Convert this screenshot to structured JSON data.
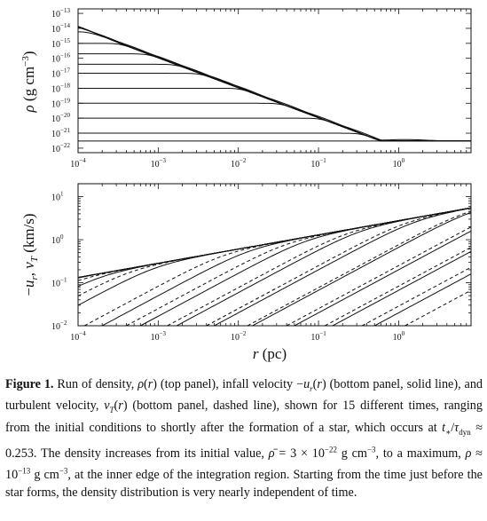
{
  "chart_data": [
    {
      "type": "line",
      "panel": "top",
      "ylabel": "ρ (g cm⁻³)",
      "xlabel": "",
      "xscale": "log",
      "yscale": "log",
      "xlim": [
        0.0001,
        8
      ],
      "ylim": [
        5e-23,
        2e-13
      ],
      "x_ticks": [
        {
          "label": "10",
          "exp": "-4",
          "value": 0.0001
        },
        {
          "label": "10",
          "exp": "-3",
          "value": 0.001
        },
        {
          "label": "10",
          "exp": "-2",
          "value": 0.01
        },
        {
          "label": "10",
          "exp": "-1",
          "value": 0.1
        },
        {
          "label": "10",
          "exp": "0",
          "value": 1
        }
      ],
      "y_ticks": [
        {
          "label": "10",
          "exp": "-13",
          "value": 1e-13
        },
        {
          "label": "10",
          "exp": "-14",
          "value": 1e-14
        },
        {
          "label": "10",
          "exp": "-15",
          "value": 1e-15
        },
        {
          "label": "10",
          "exp": "-16",
          "value": 1e-16
        },
        {
          "label": "10",
          "exp": "-17",
          "value": 1e-17
        },
        {
          "label": "10",
          "exp": "-18",
          "value": 1e-18
        },
        {
          "label": "10",
          "exp": "-19",
          "value": 1e-19
        },
        {
          "label": "10",
          "exp": "-20",
          "value": 1e-20
        },
        {
          "label": "10",
          "exp": "-21",
          "value": 1e-21
        },
        {
          "label": "10",
          "exp": "-22",
          "value": 1e-22
        }
      ],
      "series_style": "solid",
      "envelope_slope": -2,
      "final_density_at_outer_edge": 3e-22,
      "series": [
        {
          "values": [
            3e-22,
            3e-22
          ]
        },
        {
          "core": 1e-21,
          "r_core": 1.2
        },
        {
          "core": 1e-20,
          "r_core": 0.35
        },
        {
          "core": 1e-19,
          "r_core": 0.12
        },
        {
          "core": 1e-18,
          "r_core": 0.04
        },
        {
          "core": 1e-17,
          "r_core": 0.013
        },
        {
          "core": 4e-17,
          "r_core": 0.0065
        },
        {
          "core": 2e-16,
          "r_core": 0.003
        },
        {
          "core": 1e-15,
          "r_core": 0.0013
        },
        {
          "core": 6e-15,
          "r_core": 0.0005
        },
        {
          "core": 3e-14,
          "r_core": 0.00022
        },
        {
          "core": 1e-13,
          "r_core": 0.00012
        },
        {
          "core": 2e-13,
          "r_core": 0.0001
        },
        {
          "core": 2.5e-13,
          "r_core": 0.0001
        },
        {
          "core": 3e-13,
          "r_core": 0.0001
        }
      ]
    },
    {
      "type": "line",
      "panel": "bottom",
      "ylabel": "−u_r, v_T (km/s)",
      "xlabel": "r (pc)",
      "xscale": "log",
      "yscale": "log",
      "xlim": [
        0.0001,
        8
      ],
      "ylim": [
        0.01,
        20
      ],
      "x_ticks": [
        {
          "label": "10",
          "exp": "-4",
          "value": 0.0001
        },
        {
          "label": "10",
          "exp": "-3",
          "value": 0.001
        },
        {
          "label": "10",
          "exp": "-2",
          "value": 0.01
        },
        {
          "label": "10",
          "exp": "-1",
          "value": 0.1
        },
        {
          "label": "10",
          "exp": "0",
          "value": 1
        }
      ],
      "y_ticks": [
        {
          "label": "10",
          "exp": "1",
          "value": 10
        },
        {
          "label": "10",
          "exp": "0",
          "value": 1
        },
        {
          "label": "10",
          "exp": "-1",
          "value": 0.1
        },
        {
          "label": "10",
          "exp": "-2",
          "value": 0.01
        }
      ],
      "infall_velocity_solid": [
        {
          "start_r": 0.5,
          "start_v": 0.01
        },
        {
          "start_r": 0.15,
          "start_v": 0.01
        },
        {
          "start_r": 0.05,
          "start_v": 0.01
        },
        {
          "start_r": 0.015,
          "start_v": 0.01
        },
        {
          "start_r": 0.005,
          "start_v": 0.01
        },
        {
          "start_r": 0.0017,
          "start_v": 0.01
        },
        {
          "start_r": 0.0006,
          "start_v": 0.01
        },
        {
          "start_r": 0.0002,
          "start_v": 0.01
        },
        {
          "start_r": 0.0001,
          "start_v": 0.03
        },
        {
          "start_r": 0.0001,
          "start_v": 0.09
        },
        {
          "start_r": 0.0001,
          "start_v": 0.3
        },
        {
          "start_r": 0.0001,
          "start_v": 0.6
        },
        {
          "start_r": 0.0001,
          "start_v": 0.9
        },
        {
          "start_r": 0.0001,
          "start_v": 1.1
        },
        {
          "start_r": 0.0001,
          "start_v": 1.3
        }
      ],
      "turbulent_velocity_dashed": [
        {
          "start_r": 1.2,
          "start_v": 0.01
        },
        {
          "start_r": 0.35,
          "start_v": 0.01
        },
        {
          "start_r": 0.12,
          "start_v": 0.01
        },
        {
          "start_r": 0.04,
          "start_v": 0.01
        },
        {
          "start_r": 0.013,
          "start_v": 0.01
        },
        {
          "start_r": 0.004,
          "start_v": 0.01
        },
        {
          "start_r": 0.0013,
          "start_v": 0.01
        },
        {
          "start_r": 0.0004,
          "start_v": 0.01
        },
        {
          "start_r": 0.00012,
          "start_v": 0.01
        },
        {
          "start_r": 0.0001,
          "start_v": 0.05
        },
        {
          "start_r": 0.0001,
          "start_v": 0.15
        },
        {
          "start_r": 0.0001,
          "start_v": 0.45
        },
        {
          "start_r": 0.0001,
          "start_v": 0.7
        },
        {
          "start_r": 0.0001,
          "start_v": 0.9
        },
        {
          "start_r": 0.0001,
          "start_v": 1.0
        }
      ]
    }
  ],
  "caption": {
    "label": "Figure 1.",
    "text": "Run of density, ρ(r) (top panel), infall velocity −u_r(r) (bottom panel, solid line), and turbulent velocity, v_T(r) (bottom panel, dashed line), shown for 15 different times, ranging from the initial conditions to shortly after the formation of a star, which occurs at t_*/τ_dyn ≈ 0.253. The density increases from its initial value, ρ̄ = 3 × 10⁻²² g cm⁻³, to a maximum, ρ ≈ 10⁻¹³ g cm⁻³, at the inner edge of the integration region. Starting from the time just before the star forms, the density distribution is very nearly independent of time."
  }
}
